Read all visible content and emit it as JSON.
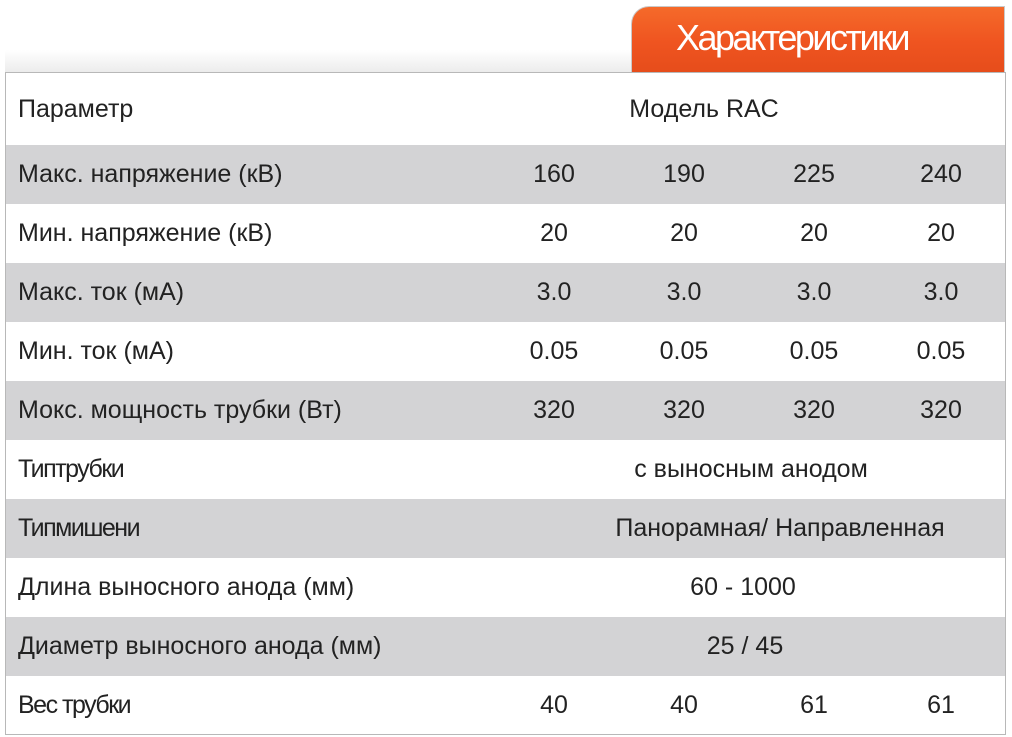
{
  "header": {
    "tab_title": "Характеристики"
  },
  "table": {
    "header_row": {
      "label": "Параметр",
      "model": "Модель RAC"
    },
    "rows": [
      {
        "label": "Макс. напряжение (кВ)",
        "values": [
          "160",
          "190",
          "225",
          "240"
        ]
      },
      {
        "label": "Мин. напряжение (кВ)",
        "values": [
          "20",
          "20",
          "20",
          "20"
        ]
      },
      {
        "label": "Макс. ток (мА)",
        "values": [
          "3.0",
          "3.0",
          "3.0",
          "3.0"
        ]
      },
      {
        "label": "Мин. ток (мА)",
        "values": [
          "0.05",
          "0.05",
          "0.05",
          "0.05"
        ]
      },
      {
        "label": "Мокс. мощность трубки (Вт)",
        "values": [
          "320",
          "320",
          "320",
          "320"
        ]
      },
      {
        "label": "Типтрубки",
        "span": "с  выносным анодом"
      },
      {
        "label": "Типмишени",
        "span": "Панорамная/ Направленная"
      },
      {
        "label": "Длина выносного анода (мм)",
        "span": "60 - 1000"
      },
      {
        "label": "Диаметр выносного анода (мм)",
        "span": "25 / 45"
      },
      {
        "label": "Вес трубки",
        "values": [
          "40",
          "40",
          "61",
          "61"
        ]
      }
    ]
  },
  "colors": {
    "accent": "#ef5420",
    "row_shade": "#d3d3d5",
    "text": "#222222"
  }
}
